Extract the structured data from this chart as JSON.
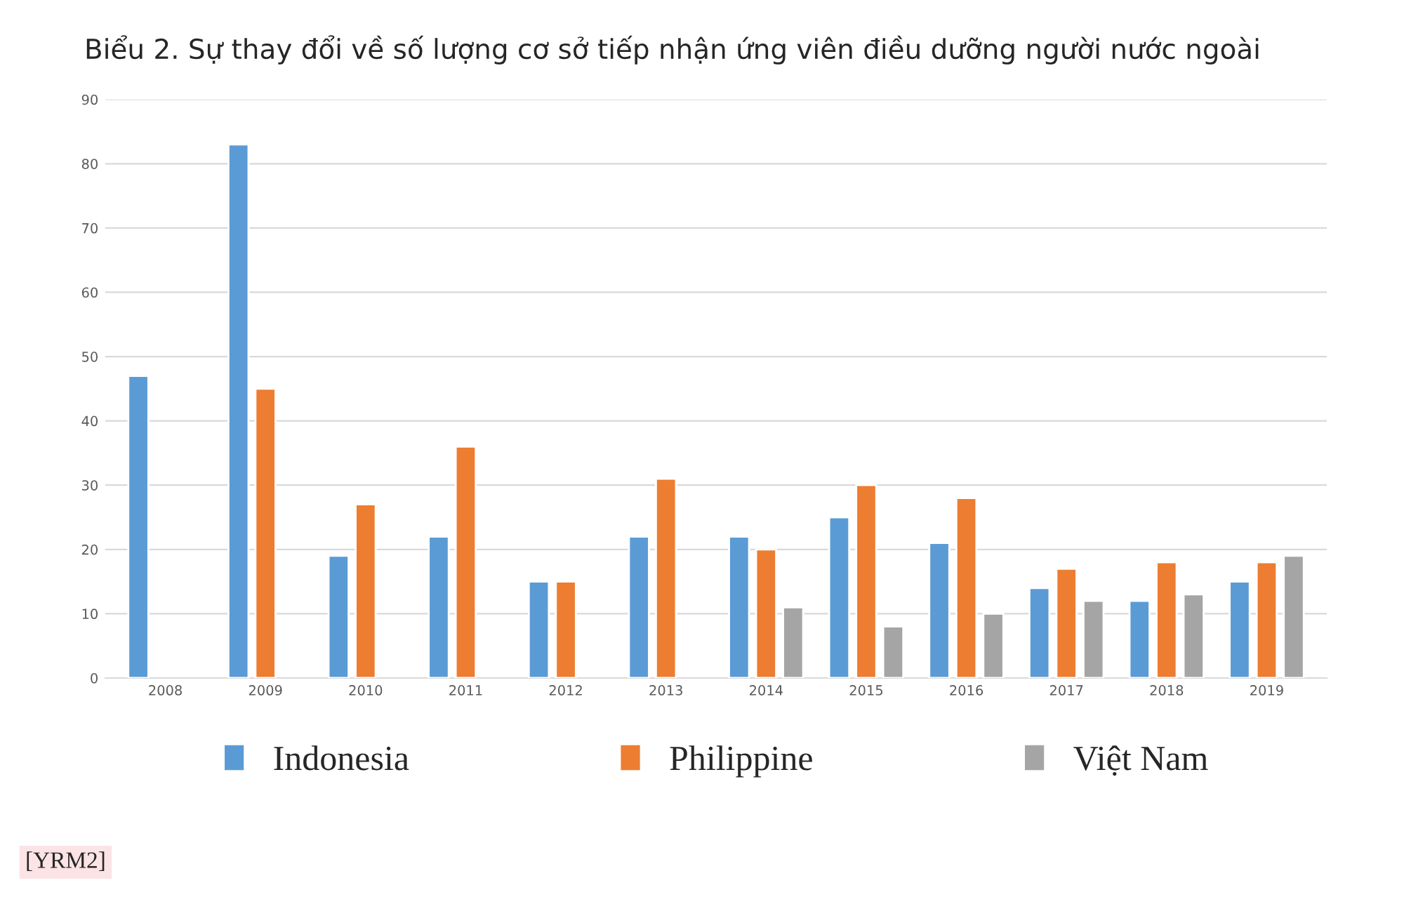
{
  "chart_data": {
    "type": "bar",
    "title": "Biểu 2. Sự thay đổi về số lượng cơ sở tiếp nhận ứng viên điều dưỡng người nước ngoài",
    "categories": [
      "2008",
      "2009",
      "2010",
      "2011",
      "2012",
      "2013",
      "2014",
      "2015",
      "2016",
      "2017",
      "2018",
      "2019"
    ],
    "series": [
      {
        "name": "Indonesia",
        "color": "#5b9bd5",
        "values": [
          47,
          83,
          19,
          22,
          15,
          22,
          22,
          25,
          21,
          14,
          12,
          15
        ]
      },
      {
        "name": "Philippine",
        "color": "#ed7d31",
        "values": [
          null,
          45,
          27,
          36,
          15,
          31,
          20,
          30,
          28,
          17,
          18,
          18
        ]
      },
      {
        "name": "Việt Nam",
        "color": "#a5a5a5",
        "values": [
          null,
          null,
          null,
          null,
          null,
          null,
          11,
          8,
          10,
          12,
          13,
          19
        ]
      }
    ],
    "ylim": [
      0,
      90
    ],
    "yticks": [
      0,
      10,
      20,
      30,
      40,
      50,
      60,
      70,
      80,
      90
    ],
    "grid": "y",
    "legend": "bottom",
    "annotations": [
      "[YRM2]"
    ]
  }
}
